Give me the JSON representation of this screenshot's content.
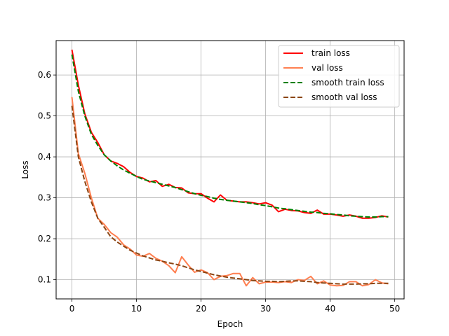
{
  "chart_data": {
    "type": "line",
    "xlabel": "Epoch",
    "ylabel": "Loss",
    "xlim": [
      -2.45,
      51.45
    ],
    "ylim": [
      0.053,
      0.684
    ],
    "xticks": [
      0,
      10,
      20,
      30,
      40,
      50
    ],
    "yticks": [
      0.1,
      0.2,
      0.3,
      0.4,
      0.5,
      0.6
    ],
    "grid": true,
    "legend_position": "top-right",
    "x": [
      0,
      1,
      2,
      3,
      4,
      5,
      6,
      7,
      8,
      9,
      10,
      11,
      12,
      13,
      14,
      15,
      16,
      17,
      18,
      19,
      20,
      21,
      22,
      23,
      24,
      25,
      26,
      27,
      28,
      29,
      30,
      31,
      32,
      33,
      34,
      35,
      36,
      37,
      38,
      39,
      40,
      41,
      42,
      43,
      44,
      45,
      46,
      47,
      48,
      49
    ],
    "series": [
      {
        "name": "train loss",
        "color": "#ff0000",
        "dash": "solid",
        "values": [
          0.662,
          0.575,
          0.505,
          0.46,
          0.435,
          0.405,
          0.39,
          0.384,
          0.376,
          0.362,
          0.352,
          0.348,
          0.339,
          0.342,
          0.328,
          0.333,
          0.325,
          0.324,
          0.312,
          0.31,
          0.31,
          0.299,
          0.29,
          0.307,
          0.294,
          0.292,
          0.29,
          0.29,
          0.288,
          0.285,
          0.288,
          0.282,
          0.266,
          0.272,
          0.269,
          0.268,
          0.264,
          0.262,
          0.27,
          0.26,
          0.26,
          0.258,
          0.255,
          0.258,
          0.255,
          0.25,
          0.25,
          0.252,
          0.256,
          0.253
        ]
      },
      {
        "name": "val loss",
        "color": "#ff7f50",
        "dash": "solid",
        "values": [
          0.546,
          0.408,
          0.36,
          0.3,
          0.25,
          0.235,
          0.215,
          0.204,
          0.185,
          0.175,
          0.16,
          0.157,
          0.164,
          0.152,
          0.145,
          0.134,
          0.117,
          0.156,
          0.136,
          0.118,
          0.124,
          0.117,
          0.1,
          0.108,
          0.11,
          0.115,
          0.115,
          0.085,
          0.105,
          0.09,
          0.094,
          0.094,
          0.093,
          0.095,
          0.093,
          0.1,
          0.098,
          0.108,
          0.09,
          0.097,
          0.087,
          0.085,
          0.086,
          0.095,
          0.095,
          0.085,
          0.088,
          0.1,
          0.092,
          0.09
        ]
      },
      {
        "name": "smooth train loss",
        "color": "#008000",
        "dash": "dashed",
        "values": [
          0.65,
          0.56,
          0.5,
          0.455,
          0.428,
          0.405,
          0.39,
          0.378,
          0.368,
          0.36,
          0.352,
          0.345,
          0.341,
          0.337,
          0.333,
          0.329,
          0.325,
          0.32,
          0.315,
          0.31,
          0.306,
          0.303,
          0.299,
          0.296,
          0.294,
          0.292,
          0.29,
          0.288,
          0.286,
          0.283,
          0.281,
          0.278,
          0.275,
          0.273,
          0.271,
          0.269,
          0.267,
          0.265,
          0.264,
          0.262,
          0.261,
          0.259,
          0.258,
          0.256,
          0.255,
          0.254,
          0.253,
          0.253,
          0.254,
          0.254
        ]
      },
      {
        "name": "smooth val loss",
        "color": "#8b4513",
        "dash": "dashed",
        "values": [
          0.525,
          0.4,
          0.34,
          0.29,
          0.25,
          0.228,
          0.205,
          0.192,
          0.182,
          0.172,
          0.165,
          0.158,
          0.153,
          0.148,
          0.145,
          0.141,
          0.138,
          0.134,
          0.129,
          0.124,
          0.12,
          0.116,
          0.112,
          0.109,
          0.106,
          0.104,
          0.102,
          0.1,
          0.098,
          0.097,
          0.096,
          0.096,
          0.095,
          0.096,
          0.097,
          0.097,
          0.096,
          0.095,
          0.093,
          0.092,
          0.091,
          0.09,
          0.089,
          0.089,
          0.089,
          0.09,
          0.09,
          0.091,
          0.091,
          0.091
        ]
      }
    ]
  }
}
